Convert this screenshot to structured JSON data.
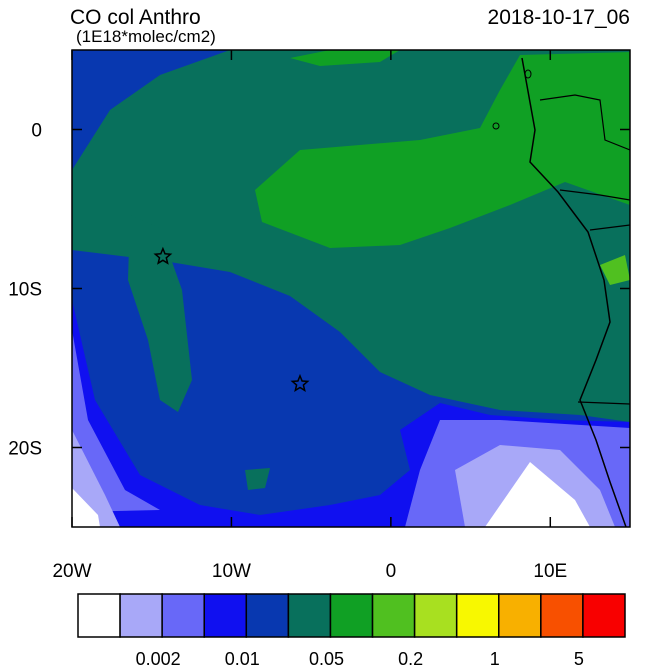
{
  "map": {
    "title": "CO col Anthro",
    "subtitle": "(1E18*molec/cm2)",
    "timestamp": "2018-10-17_06",
    "xlim": [
      -20,
      15
    ],
    "ylim": [
      -25,
      5
    ],
    "xticks": [
      {
        "value": -20,
        "label": "20W"
      },
      {
        "value": -10,
        "label": "10W"
      },
      0,
      {
        "value": 10,
        "label": "10E"
      }
    ],
    "yticks": [
      0,
      {
        "value": -10,
        "label": "10S"
      },
      {
        "value": -20,
        "label": "20S"
      }
    ],
    "markers": [
      {
        "lon": -14.3,
        "lat": -8
      },
      {
        "lon": -5.7,
        "lat": -16
      }
    ],
    "colorbar": {
      "colors": [
        "#ffffff",
        "#a8a8f8",
        "#6868f8",
        "#1010f0",
        "#0838b0",
        "#08705c",
        "#10a024",
        "#50c020",
        "#a8e020",
        "#f8f800",
        "#f8b000",
        "#f85000",
        "#f80000"
      ],
      "levels": [
        null,
        0.002,
        null,
        0.01,
        null,
        0.05,
        null,
        0.2,
        null,
        1,
        null,
        5
      ]
    }
  }
}
